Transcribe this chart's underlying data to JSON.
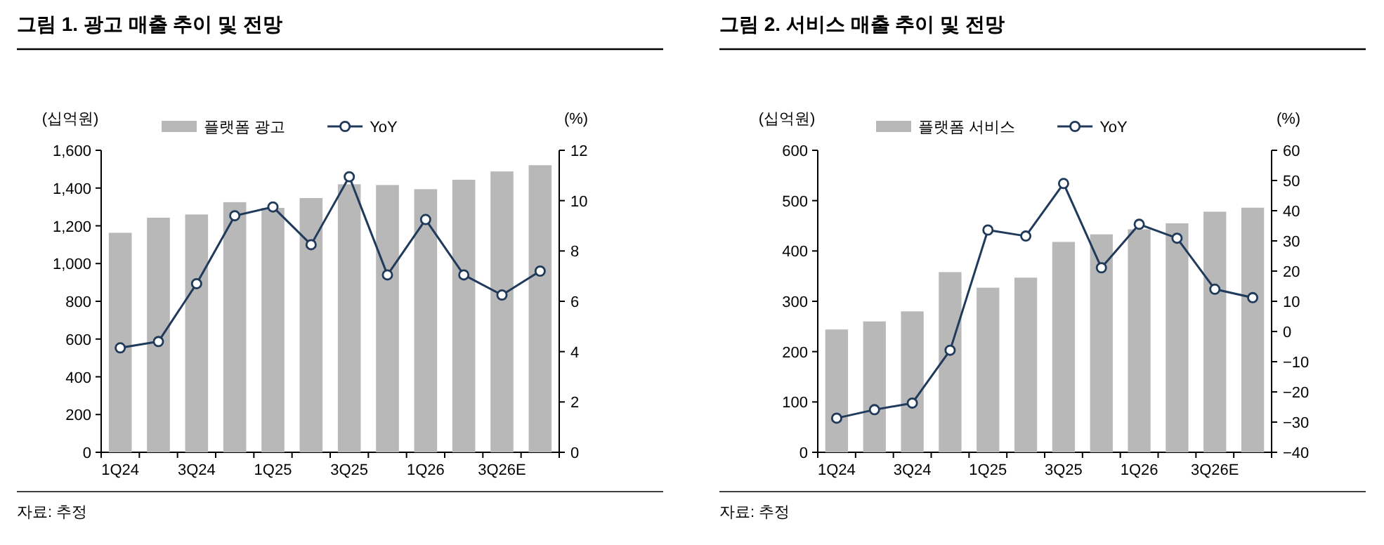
{
  "chart_data": [
    {
      "type": "bar",
      "title": "그림 1. 광고 매출 추이 및 전망",
      "ylabel": "(십억원)",
      "y2label": "(%)",
      "categories": [
        "1Q24",
        null,
        "3Q24",
        null,
        "1Q25",
        null,
        "3Q25",
        null,
        "1Q26",
        null,
        "3Q26E",
        null
      ],
      "series": [
        {
          "name": "플랫폼 광고",
          "color": "#b8b8b8",
          "values": [
            1163,
            1243,
            1260,
            1325,
            1295,
            1347,
            1420,
            1416,
            1394,
            1444,
            1488,
            1521
          ]
        },
        {
          "name": "YoY",
          "type": "line",
          "axis": "y2",
          "color": "#1f3a5a",
          "marker": "circle",
          "values": [
            4.15,
            4.4,
            6.7,
            9.4,
            9.75,
            8.25,
            10.95,
            7.05,
            9.25,
            7.05,
            6.25,
            7.2
          ]
        }
      ],
      "ylim": [
        0,
        1600
      ],
      "yticks": [
        0,
        {
          "value": 200,
          "label": "200"
        },
        {
          "value": 400,
          "label": "400"
        },
        {
          "value": 600,
          "label": "600"
        },
        {
          "value": 800,
          "label": "800"
        },
        {
          "value": 1000,
          "label": "1,000"
        },
        {
          "value": 1200,
          "label": "1,200"
        },
        {
          "value": 1400,
          "label": "1,400"
        },
        {
          "value": 1600,
          "label": "1,600"
        }
      ],
      "y2lim": [
        0,
        12
      ],
      "y2ticks": [
        0,
        2,
        4,
        6,
        8,
        10,
        12
      ],
      "legend": "top",
      "grid": false,
      "annotations": [
        "자료: 추정"
      ]
    },
    {
      "type": "bar",
      "title": "그림 2. 서비스 매출 추이 및 전망",
      "ylabel": "(십억원)",
      "y2label": "(%)",
      "categories": [
        "1Q24",
        null,
        "3Q24",
        null,
        "1Q25",
        null,
        "3Q25",
        null,
        "1Q26",
        null,
        "3Q26E",
        null
      ],
      "series": [
        {
          "name": "플랫폼 서비스",
          "color": "#b8b8b8",
          "values": [
            244,
            260,
            280,
            358,
            327,
            347,
            418,
            433,
            443,
            455,
            478,
            486
          ]
        },
        {
          "name": "YoY",
          "type": "line",
          "axis": "y2",
          "color": "#1f3a5a",
          "marker": "circle",
          "values": [
            -28.7,
            -25.9,
            -23.7,
            -6.2,
            33.6,
            31.6,
            49.0,
            21.1,
            35.5,
            30.9,
            14.0,
            11.2
          ]
        }
      ],
      "ylim": [
        0,
        600
      ],
      "yticks": [
        0,
        100,
        200,
        300,
        400,
        500,
        600
      ],
      "y2lim": [
        -40,
        60
      ],
      "y2ticks": [
        -40,
        -30,
        -20,
        -10,
        0,
        10,
        20,
        30,
        40,
        50,
        60
      ],
      "legend": "top",
      "grid": false,
      "annotations": [
        "자료: 추정"
      ]
    }
  ]
}
